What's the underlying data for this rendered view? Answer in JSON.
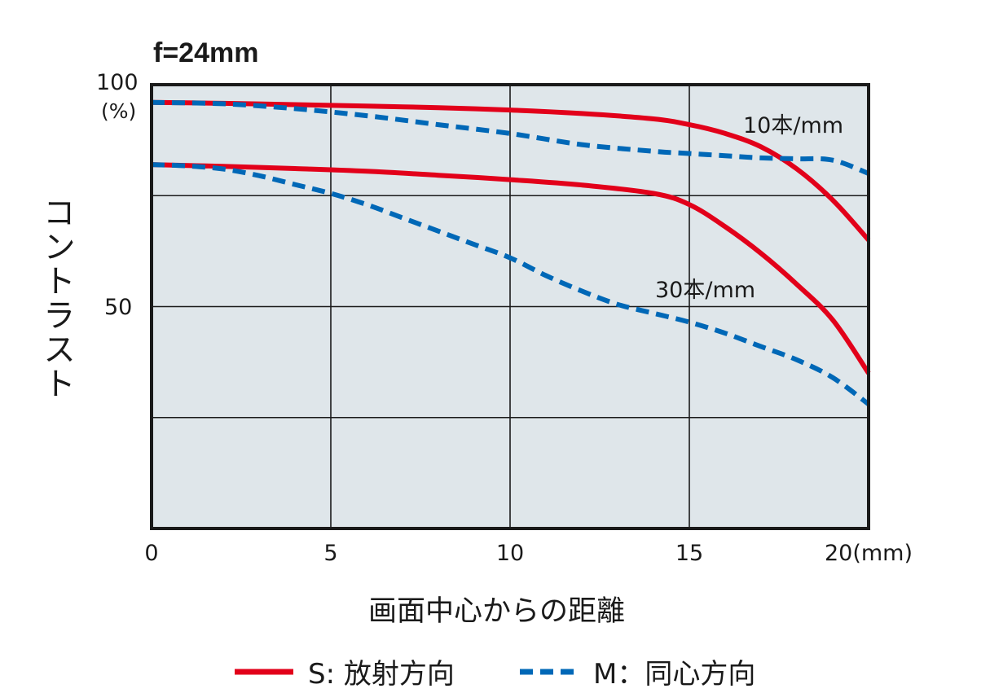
{
  "chart_data": {
    "type": "line",
    "title": "f=24mm",
    "xlabel": "画面中心からの距離",
    "ylabel": "コントラスト",
    "xlim": [
      0,
      20
    ],
    "ylim": [
      0,
      100
    ],
    "x_ticks": [
      "0",
      "5",
      "10",
      "15",
      "20"
    ],
    "x_unit": "(mm)",
    "y_ticks": [
      "100",
      "50"
    ],
    "y_unit": "(%)",
    "grid": true,
    "annotations": [
      "10本/mm",
      "30本/mm"
    ],
    "legend": {
      "placement": "bottom",
      "entries": [
        {
          "label": "S: 放射方向",
          "style": "solid",
          "color": "#e2001a"
        },
        {
          "label": "M：同心方向",
          "style": "dashed",
          "color": "#0068b7"
        }
      ]
    },
    "series": [
      {
        "name": "S: 放射方向",
        "group": "10本/mm",
        "style": "solid",
        "color": "#e2001a",
        "x": [
          0,
          2,
          4,
          6,
          8,
          10,
          12,
          14,
          15,
          16,
          17,
          18,
          19,
          20
        ],
        "y": [
          96,
          95.8,
          95.5,
          95.2,
          94.8,
          94.3,
          93.5,
          92.3,
          91,
          89,
          86,
          81,
          74,
          65
        ]
      },
      {
        "name": "M：同心方向",
        "group": "10本/mm",
        "style": "dashed",
        "color": "#0068b7",
        "x": [
          0,
          2,
          4,
          6,
          8,
          10,
          12,
          14,
          15,
          16,
          17,
          18,
          19,
          20
        ],
        "y": [
          96,
          95.7,
          94.6,
          93,
          91,
          89,
          86.5,
          85,
          84.5,
          84,
          83.5,
          83.3,
          83,
          80
        ]
      },
      {
        "name": "S: 放射方向",
        "group": "30本/mm",
        "style": "solid",
        "color": "#e2001a",
        "x": [
          0,
          2,
          4,
          6,
          8,
          10,
          12,
          14,
          15,
          16,
          17,
          18,
          19,
          20
        ],
        "y": [
          82,
          81.6,
          81.1,
          80.5,
          79.6,
          78.6,
          77.4,
          75.5,
          73,
          68,
          62,
          55,
          47,
          35
        ]
      },
      {
        "name": "M：同心方向",
        "group": "30本/mm",
        "style": "dashed",
        "color": "#0068b7",
        "x": [
          0,
          1,
          2,
          3,
          4,
          5,
          6,
          7,
          8,
          9,
          10,
          11,
          12,
          13,
          14,
          15,
          16,
          17,
          18,
          19,
          20
        ],
        "y": [
          82,
          81.7,
          81,
          79.5,
          77.5,
          75.5,
          73,
          70,
          67,
          64,
          61,
          57,
          53.5,
          50.5,
          48.5,
          46.5,
          44,
          41,
          38,
          34,
          28
        ]
      }
    ]
  }
}
